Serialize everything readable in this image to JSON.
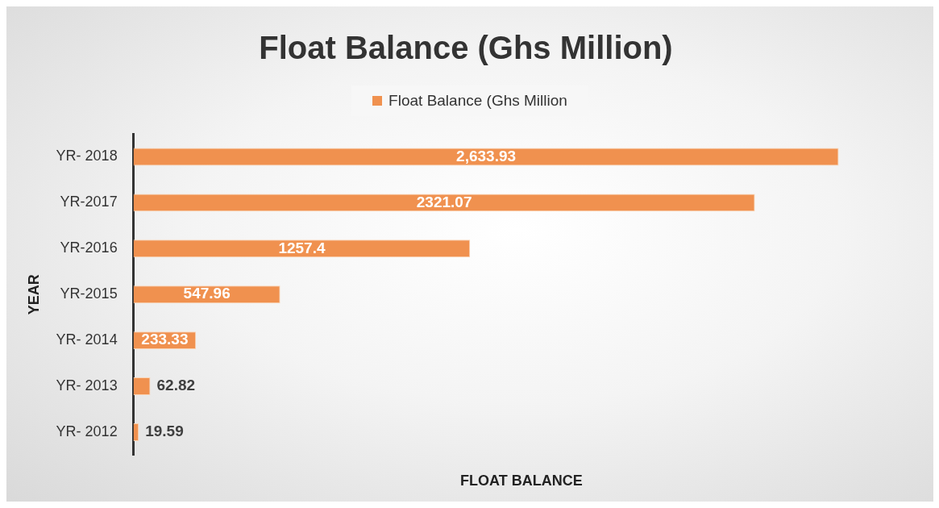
{
  "chart_data": {
    "type": "bar",
    "orientation": "horizontal",
    "title": "Float Balance (Ghs Million)",
    "xlabel": "FLOAT BALANCE",
    "ylabel": "YEAR",
    "categories": [
      "YR- 2018",
      "YR-2017",
      "YR-2016",
      "YR-2015",
      "YR- 2014",
      "YR- 2013",
      "YR- 2012"
    ],
    "series": [
      {
        "name": "Float Balance (Ghs Million",
        "color": "#f0914f",
        "values": [
          2633.93,
          2321.07,
          1257.4,
          547.96,
          233.33,
          62.82,
          19.59
        ],
        "value_labels": [
          "2,633.93",
          "2321.07",
          "1257.4",
          "547.96",
          "233.33",
          "62.82",
          "19.59"
        ]
      }
    ],
    "legend": "top",
    "grid": false,
    "tick_labels": "y"
  }
}
